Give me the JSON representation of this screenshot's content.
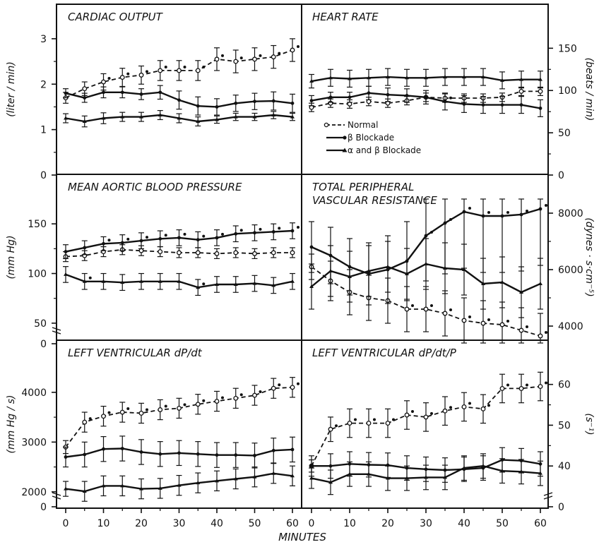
{
  "chart_data": {
    "type": "line",
    "xlabel": "MINUTES",
    "x": [
      0,
      5,
      10,
      15,
      20,
      25,
      30,
      35,
      40,
      45,
      50,
      55,
      60
    ],
    "x_ticks": [
      "0",
      "10",
      "20",
      "30",
      "40",
      "50",
      "60"
    ],
    "legend": {
      "placement": "inside heart-rate panel, lower left",
      "entries": [
        "Normal",
        "β Blockade",
        "α and β Blockade"
      ]
    },
    "panels": [
      {
        "id": "cardiac_output",
        "title": "CARDIAC OUTPUT",
        "ylabel": "(liter / min)",
        "y_axis_side": "left",
        "ylim": [
          0,
          3.2
        ],
        "yticks": [
          "0",
          "1",
          "2",
          "3"
        ],
        "series": [
          {
            "name": "Normal",
            "style": "dashed-open",
            "values": [
              1.7,
              1.9,
              2.05,
              2.15,
              2.2,
              2.3,
              2.3,
              2.3,
              2.55,
              2.5,
              2.55,
              2.6,
              2.75
            ],
            "err": [
              0.12,
              0.15,
              0.18,
              0.2,
              0.2,
              0.22,
              0.22,
              0.22,
              0.25,
              0.25,
              0.25,
              0.25,
              0.25
            ],
            "sig": [
              0,
              0,
              1,
              1,
              1,
              1,
              1,
              1,
              1,
              1,
              1,
              1,
              1
            ]
          },
          {
            "name": "β Blockade",
            "style": "solid",
            "values": [
              1.8,
              1.7,
              1.82,
              1.82,
              1.78,
              1.82,
              1.65,
              1.52,
              1.5,
              1.58,
              1.62,
              1.63,
              1.58
            ],
            "err": [
              0.1,
              0.1,
              0.12,
              0.12,
              0.12,
              0.15,
              0.2,
              0.2,
              0.18,
              0.18,
              0.18,
              0.2,
              0.2
            ],
            "sig": [
              0,
              0,
              0,
              0,
              0,
              0,
              0,
              0,
              0,
              0,
              0,
              0,
              0
            ]
          },
          {
            "name": "α and β Blockade",
            "style": "solid",
            "values": [
              1.25,
              1.18,
              1.25,
              1.28,
              1.28,
              1.32,
              1.25,
              1.18,
              1.22,
              1.28,
              1.28,
              1.32,
              1.28
            ],
            "err": [
              0.1,
              0.12,
              0.12,
              0.1,
              0.1,
              0.1,
              0.1,
              0.1,
              0.08,
              0.08,
              0.08,
              0.08,
              0.08
            ],
            "sig": [
              0,
              0,
              0,
              0,
              0,
              0,
              0,
              0,
              0,
              0,
              0,
              0,
              0
            ]
          }
        ]
      },
      {
        "id": "heart_rate",
        "title": "HEART RATE",
        "ylabel": "(beats / min)",
        "y_axis_side": "right",
        "ylim": [
          0,
          172
        ],
        "yticks": [
          "0",
          "50",
          "100",
          "150"
        ],
        "series": [
          {
            "name": "Normal",
            "style": "dashed-open",
            "values": [
              80,
              85,
              84,
              87,
              85,
              88,
              92,
              91,
              91,
              91,
              92,
              99,
              99
            ],
            "err": [
              5,
              5,
              5,
              5,
              5,
              5,
              5,
              5,
              5,
              5,
              5,
              5,
              5
            ],
            "sig": [
              0,
              0,
              0,
              0,
              0,
              0,
              0,
              0,
              0,
              0,
              0,
              0,
              0
            ]
          },
          {
            "name": "β Blockade",
            "style": "solid",
            "values": [
              88,
              92,
              92,
              97,
              95,
              94,
              92,
              87,
              84,
              83,
              83,
              83,
              79
            ],
            "err": [
              6,
              6,
              6,
              8,
              8,
              8,
              8,
              10,
              10,
              10,
              10,
              10,
              10
            ],
            "sig": [
              0,
              0,
              0,
              0,
              0,
              0,
              0,
              1,
              0,
              0,
              0,
              0,
              0
            ]
          },
          {
            "name": "α and β Blockade",
            "style": "solid",
            "values": [
              111,
              115,
              114,
              115,
              116,
              115,
              115,
              116,
              116,
              116,
              112,
              113,
              113
            ],
            "err": [
              8,
              10,
              10,
              10,
              10,
              10,
              10,
              10,
              10,
              10,
              10,
              10,
              10
            ],
            "sig": [
              0,
              0,
              0,
              0,
              0,
              0,
              0,
              0,
              0,
              0,
              0,
              0,
              0
            ]
          }
        ]
      },
      {
        "id": "mean_aortic_bp",
        "title": "MEAN AORTIC BLOOD PRESSURE",
        "ylabel": "(mm Hg)",
        "y_axis_side": "left",
        "axis_break": true,
        "ylim": [
          30,
          175
        ],
        "yticks": [
          "0",
          "50",
          "100",
          "150"
        ],
        "series": [
          {
            "name": "Normal",
            "style": "dashed-open",
            "values": [
              117,
              118,
              122,
              124,
              123,
              122,
              121,
              121,
              120,
              121,
              120,
              121,
              121
            ],
            "err": [
              5,
              5,
              5,
              5,
              5,
              5,
              5,
              5,
              5,
              5,
              5,
              5,
              5
            ],
            "sig": [
              0,
              0,
              0,
              0,
              0,
              0,
              0,
              0,
              0,
              0,
              0,
              0,
              0
            ]
          },
          {
            "name": "β Blockade",
            "style": "solid",
            "values": [
              122,
              126,
              130,
              131,
              133,
              135,
              136,
              134,
              136,
              140,
              141,
              142,
              143
            ],
            "err": [
              7,
              7,
              7,
              8,
              8,
              8,
              8,
              8,
              8,
              8,
              8,
              8,
              8
            ],
            "sig": [
              0,
              0,
              1,
              1,
              1,
              1,
              1,
              1,
              1,
              1,
              1,
              1,
              1
            ]
          },
          {
            "name": "α and β Blockade",
            "style": "solid",
            "values": [
              99,
              92,
              92,
              91,
              92,
              92,
              92,
              86,
              89,
              89,
              90,
              88,
              92
            ],
            "err": [
              8,
              8,
              8,
              8,
              8,
              8,
              8,
              8,
              8,
              8,
              8,
              8,
              8
            ],
            "sig": [
              0,
              1,
              0,
              0,
              0,
              0,
              0,
              1,
              0,
              0,
              0,
              0,
              0
            ]
          }
        ]
      },
      {
        "id": "total_peripheral_vascular_resistance",
        "title": [
          "TOTAL PERIPHERAL",
          "VASCULAR RESISTANCE"
        ],
        "ylabel": "(dynes · s·cm⁻⁵)",
        "y_axis_side": "right",
        "ylim": [
          3400,
          8500
        ],
        "yticks": [
          "4000",
          "6000",
          "8000"
        ],
        "series": [
          {
            "name": "Normal",
            "style": "dashed-open",
            "values": [
              6100,
              5600,
              5200,
              5000,
              4900,
              4600,
              4600,
              4450,
              4200,
              4100,
              4050,
              3850,
              3650
            ],
            "err": [
              450,
              700,
              800,
              800,
              800,
              800,
              800,
              800,
              800,
              800,
              800,
              800,
              800
            ],
            "sig": [
              0,
              0,
              0,
              0,
              0,
              1,
              1,
              1,
              1,
              1,
              1,
              1,
              1
            ]
          },
          {
            "name": "β Blockade",
            "style": "solid",
            "values": [
              6800,
              6500,
              6100,
              5850,
              6000,
              6300,
              7200,
              7650,
              8050,
              7900,
              7900,
              7950,
              8150
            ],
            "err": [
              900,
              1000,
              1000,
              1100,
              1200,
              1400,
              1600,
              1800,
              2000,
              2000,
              2000,
              2000,
              2000
            ],
            "sig": [
              0,
              0,
              0,
              0,
              0,
              0,
              1,
              1,
              1,
              1,
              1,
              1,
              1
            ]
          },
          {
            "name": "α and β Blockade",
            "style": "solid",
            "values": [
              5400,
              5950,
              5750,
              5950,
              6100,
              5850,
              6200,
              6050,
              6000,
              5500,
              5550,
              5200,
              5500
            ],
            "err": [
              800,
              900,
              900,
              900,
              900,
              900,
              900,
              900,
              900,
              900,
              900,
              900,
              900
            ],
            "sig": [
              0,
              0,
              0,
              0,
              0,
              0,
              0,
              0,
              0,
              0,
              0,
              0,
              0
            ]
          }
        ]
      },
      {
        "id": "lv_dpdt",
        "title": "LEFT VENTRICULAR dP/dt",
        "ylabel": "(mm Hg / s)",
        "y_axis_side": "left",
        "axis_break": true,
        "ylim": [
          1700,
          4650
        ],
        "yticks": [
          "0",
          "2000",
          "3000",
          "4000"
        ],
        "series": [
          {
            "name": "Normal",
            "style": "dashed-open",
            "values": [
              2900,
              3400,
              3520,
              3600,
              3580,
              3650,
              3680,
              3760,
              3820,
              3880,
              3940,
              4080,
              4100
            ],
            "err": [
              130,
              200,
              200,
              200,
              200,
              200,
              200,
              200,
              200,
              200,
              200,
              200,
              200
            ],
            "sig": [
              0,
              1,
              1,
              1,
              1,
              1,
              1,
              1,
              1,
              1,
              1,
              1,
              1
            ]
          },
          {
            "name": "β Blockade",
            "style": "solid",
            "values": [
              2700,
              2750,
              2860,
              2870,
              2800,
              2760,
              2780,
              2760,
              2740,
              2740,
              2730,
              2830,
              2850
            ],
            "err": [
              200,
              250,
              250,
              250,
              250,
              250,
              250,
              250,
              250,
              250,
              250,
              250,
              250
            ],
            "sig": [
              0,
              0,
              0,
              0,
              0,
              0,
              0,
              0,
              0,
              0,
              0,
              0,
              0
            ]
          },
          {
            "name": "α and β Blockade",
            "style": "solid",
            "values": [
              2060,
              2010,
              2120,
              2120,
              2060,
              2070,
              2130,
              2180,
              2220,
              2260,
              2300,
              2370,
              2320
            ],
            "err": [
              150,
              200,
              200,
              200,
              200,
              200,
              200,
              200,
              200,
              200,
              200,
              200,
              200
            ],
            "sig": [
              0,
              0,
              0,
              0,
              0,
              0,
              0,
              0,
              0,
              0,
              0,
              0,
              0
            ]
          }
        ]
      },
      {
        "id": "lv_dpdt_p",
        "title": "LEFT VENTRICULAR dP/dt/P",
        "ylabel": "(s⁻¹)",
        "y_axis_side": "right",
        "axis_break": true,
        "ylim": [
          30,
          66
        ],
        "yticks": [
          "0",
          "40",
          "50",
          "60"
        ],
        "series": [
          {
            "name": "Normal",
            "style": "dashed-open",
            "values": [
              40,
              49,
              50.5,
              50.5,
              50.5,
              52.5,
              52,
              53.5,
              54.5,
              54,
              59,
              59,
              59.5
            ],
            "err": [
              1.5,
              3,
              3.5,
              3.5,
              3.5,
              3.5,
              3.5,
              3.5,
              3.5,
              3.5,
              3.5,
              3.5,
              3.5
            ],
            "sig": [
              0,
              1,
              1,
              1,
              1,
              1,
              1,
              1,
              1,
              1,
              1,
              1,
              1
            ]
          },
          {
            "name": "β Blockade",
            "style": "solid",
            "values": [
              40,
              40,
              40.5,
              40.3,
              40.2,
              39.5,
              39.2,
              39,
              39.2,
              39.5,
              41.5,
              41.3,
              40.5
            ],
            "err": [
              2.5,
              3,
              3,
              3,
              3,
              3,
              3,
              3,
              3,
              3,
              3,
              3,
              3
            ],
            "sig": [
              0,
              0,
              0,
              0,
              0,
              0,
              0,
              0,
              0,
              0,
              0,
              0,
              0
            ]
          },
          {
            "name": "α and β Blockade",
            "style": "solid",
            "values": [
              37,
              36,
              38,
              38,
              37,
              37,
              37.2,
              37.2,
              39.5,
              40,
              38.8,
              38.6,
              38.2
            ],
            "err": [
              2.5,
              3,
              3,
              3,
              3,
              3,
              3,
              3,
              3,
              3,
              3,
              3,
              3
            ],
            "sig": [
              0,
              0,
              0,
              0,
              0,
              0,
              0,
              0,
              0,
              0,
              0,
              0,
              0
            ]
          }
        ]
      }
    ]
  }
}
